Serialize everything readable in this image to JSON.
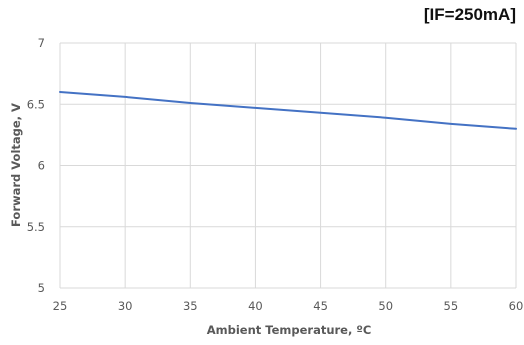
{
  "chart_data": {
    "type": "line",
    "annotation": "[IF=250mA]",
    "title": "",
    "xlabel": "Ambient Temperature, ºC",
    "ylabel": "Forward Voltage, V",
    "xlim": [
      25,
      60
    ],
    "ylim": [
      5,
      7
    ],
    "xticks": [
      25,
      30,
      35,
      40,
      45,
      50,
      55,
      60
    ],
    "yticks": [
      5,
      5.5,
      6,
      6.5,
      7
    ],
    "grid": true,
    "series": [
      {
        "color": "#4472c4",
        "x": [
          25,
          30,
          35,
          40,
          45,
          50,
          55,
          60
        ],
        "y": [
          6.6,
          6.56,
          6.51,
          6.47,
          6.43,
          6.39,
          6.34,
          6.3
        ]
      }
    ]
  },
  "colors": {
    "line": "#4472c4",
    "grid": "#d9d9d9",
    "text": "#595959"
  }
}
